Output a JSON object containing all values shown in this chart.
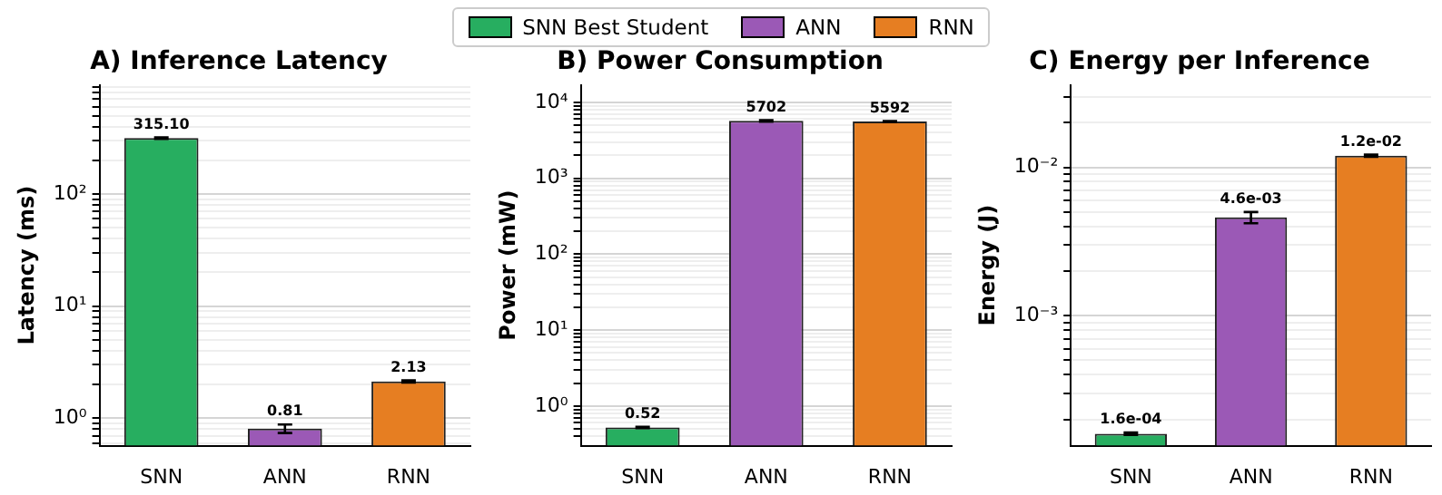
{
  "chart_data": [
    {
      "type": "bar",
      "title": "A) Inference Latency",
      "ylabel": "Latency (ms)",
      "categories": [
        "SNN",
        "ANN",
        "RNN"
      ],
      "log": "y",
      "grid": "y",
      "legend": "top",
      "ylim": [
        0.57,
        940
      ],
      "yticks": [
        {
          "value": 0.6,
          "label": null
        },
        {
          "value": 0.7,
          "label": null
        },
        {
          "value": 0.8,
          "label": null
        },
        {
          "value": 0.9,
          "label": null
        },
        {
          "value": 1,
          "label": "10⁰"
        },
        {
          "value": 2,
          "label": null
        },
        {
          "value": 3,
          "label": null
        },
        {
          "value": 4,
          "label": null
        },
        {
          "value": 5,
          "label": null
        },
        {
          "value": 6,
          "label": null
        },
        {
          "value": 7,
          "label": null
        },
        {
          "value": 8,
          "label": null
        },
        {
          "value": 9,
          "label": null
        },
        {
          "value": 10,
          "label": "10¹"
        },
        {
          "value": 20,
          "label": null
        },
        {
          "value": 30,
          "label": null
        },
        {
          "value": 40,
          "label": null
        },
        {
          "value": 50,
          "label": null
        },
        {
          "value": 60,
          "label": null
        },
        {
          "value": 70,
          "label": null
        },
        {
          "value": 80,
          "label": null
        },
        {
          "value": 90,
          "label": null
        },
        {
          "value": 100,
          "label": "10²"
        },
        {
          "value": 200,
          "label": null
        },
        {
          "value": 300,
          "label": null
        },
        {
          "value": 400,
          "label": null
        },
        {
          "value": 500,
          "label": null
        },
        {
          "value": 600,
          "label": null
        },
        {
          "value": 700,
          "label": null
        },
        {
          "value": 800,
          "label": null
        },
        {
          "value": 900,
          "label": null
        }
      ],
      "series": [
        {
          "name": "SNN Best Student",
          "color": "#27ae60",
          "values": [
            315.1,
            null,
            null
          ],
          "errors": [
            5,
            null,
            null
          ],
          "value_labels": [
            "315.10",
            null,
            null
          ]
        },
        {
          "name": "ANN",
          "color": "#9b59b6",
          "values": [
            null,
            0.81,
            null
          ],
          "errors": [
            null,
            0.07,
            null
          ],
          "value_labels": [
            null,
            "0.81",
            null
          ]
        },
        {
          "name": "RNN",
          "color": "#e67e22",
          "values": [
            null,
            null,
            2.13
          ],
          "errors": [
            null,
            null,
            0.05
          ],
          "value_labels": [
            null,
            null,
            "2.13"
          ]
        }
      ]
    },
    {
      "type": "bar",
      "title": "B) Power Consumption",
      "ylabel": "Power (mW)",
      "categories": [
        "SNN",
        "ANN",
        "RNN"
      ],
      "log": "y",
      "grid": "y",
      "ylim": [
        0.34,
        17000
      ],
      "yticks": [
        {
          "value": 0.4,
          "label": null
        },
        {
          "value": 0.5,
          "label": null
        },
        {
          "value": 0.6,
          "label": null
        },
        {
          "value": 0.7,
          "label": null
        },
        {
          "value": 0.8,
          "label": null
        },
        {
          "value": 0.9,
          "label": null
        },
        {
          "value": 1,
          "label": "10⁰"
        },
        {
          "value": 2,
          "label": null
        },
        {
          "value": 3,
          "label": null
        },
        {
          "value": 4,
          "label": null
        },
        {
          "value": 5,
          "label": null
        },
        {
          "value": 6,
          "label": null
        },
        {
          "value": 7,
          "label": null
        },
        {
          "value": 8,
          "label": null
        },
        {
          "value": 9,
          "label": null
        },
        {
          "value": 10,
          "label": "10¹"
        },
        {
          "value": 20,
          "label": null
        },
        {
          "value": 30,
          "label": null
        },
        {
          "value": 40,
          "label": null
        },
        {
          "value": 50,
          "label": null
        },
        {
          "value": 60,
          "label": null
        },
        {
          "value": 70,
          "label": null
        },
        {
          "value": 80,
          "label": null
        },
        {
          "value": 90,
          "label": null
        },
        {
          "value": 100,
          "label": "10²"
        },
        {
          "value": 200,
          "label": null
        },
        {
          "value": 300,
          "label": null
        },
        {
          "value": 400,
          "label": null
        },
        {
          "value": 500,
          "label": null
        },
        {
          "value": 600,
          "label": null
        },
        {
          "value": 700,
          "label": null
        },
        {
          "value": 800,
          "label": null
        },
        {
          "value": 900,
          "label": null
        },
        {
          "value": 1000,
          "label": "10³"
        },
        {
          "value": 2000,
          "label": null
        },
        {
          "value": 3000,
          "label": null
        },
        {
          "value": 4000,
          "label": null
        },
        {
          "value": 5000,
          "label": null
        },
        {
          "value": 6000,
          "label": null
        },
        {
          "value": 7000,
          "label": null
        },
        {
          "value": 8000,
          "label": null
        },
        {
          "value": 9000,
          "label": null
        },
        {
          "value": 10000,
          "label": "10⁴"
        }
      ],
      "series": [
        {
          "color": "#27ae60",
          "values": [
            0.52,
            null,
            null
          ],
          "errors": [
            0.01,
            null,
            null
          ],
          "value_labels": [
            "0.52",
            null,
            null
          ]
        },
        {
          "color": "#9b59b6",
          "values": [
            null,
            5702,
            null
          ],
          "errors": [
            null,
            120,
            null
          ],
          "value_labels": [
            null,
            "5702",
            null
          ]
        },
        {
          "color": "#e67e22",
          "values": [
            null,
            null,
            5592
          ],
          "errors": [
            null,
            null,
            80
          ],
          "value_labels": [
            null,
            null,
            "5592"
          ]
        }
      ]
    },
    {
      "type": "bar",
      "title": "C) Energy per Inference",
      "ylabel": "Energy (J)",
      "categories": [
        "SNN",
        "ANN",
        "RNN"
      ],
      "log": "y",
      "grid": "y",
      "ylim": [
        0.000133,
        0.036
      ],
      "yticks": [
        {
          "value": 0.0002,
          "label": null
        },
        {
          "value": 0.0003,
          "label": null
        },
        {
          "value": 0.0004,
          "label": null
        },
        {
          "value": 0.0005,
          "label": null
        },
        {
          "value": 0.0006,
          "label": null
        },
        {
          "value": 0.0007,
          "label": null
        },
        {
          "value": 0.0008,
          "label": null
        },
        {
          "value": 0.0009,
          "label": null
        },
        {
          "value": 0.001,
          "label": "10⁻³"
        },
        {
          "value": 0.002,
          "label": null
        },
        {
          "value": 0.003,
          "label": null
        },
        {
          "value": 0.004,
          "label": null
        },
        {
          "value": 0.005,
          "label": null
        },
        {
          "value": 0.006,
          "label": null
        },
        {
          "value": 0.007,
          "label": null
        },
        {
          "value": 0.008,
          "label": null
        },
        {
          "value": 0.009,
          "label": null
        },
        {
          "value": 0.01,
          "label": "10⁻²"
        },
        {
          "value": 0.02,
          "label": null
        },
        {
          "value": 0.03,
          "label": null
        }
      ],
      "series": [
        {
          "color": "#27ae60",
          "values": [
            0.00016,
            null,
            null
          ],
          "errors": [
            3e-06,
            null,
            null
          ],
          "value_labels": [
            "1.6e-04",
            null,
            null
          ]
        },
        {
          "color": "#9b59b6",
          "values": [
            null,
            0.0046,
            null
          ],
          "errors": [
            null,
            0.0004,
            null
          ],
          "value_labels": [
            null,
            "4.6e-03",
            null
          ]
        },
        {
          "color": "#e67e22",
          "values": [
            null,
            null,
            0.012
          ],
          "errors": [
            null,
            null,
            0.0002
          ],
          "value_labels": [
            null,
            null,
            "1.2e-02"
          ]
        }
      ]
    }
  ]
}
